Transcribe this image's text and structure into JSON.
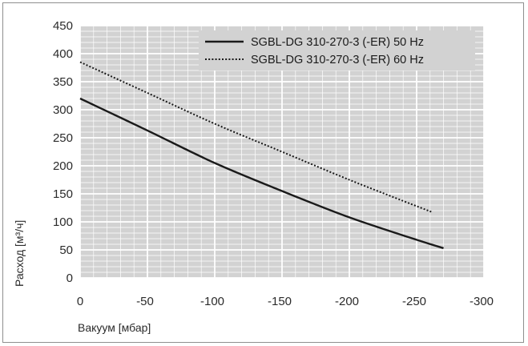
{
  "chart_data": {
    "type": "line",
    "xlabel": "Вакуум [мбар]",
    "ylabel": "Расход [м³/ч]",
    "xlim": [
      0,
      -300
    ],
    "ylim": [
      0,
      450
    ],
    "x_ticks": [
      0,
      -50,
      -100,
      -150,
      -200,
      -250,
      -300
    ],
    "y_ticks": [
      0,
      50,
      100,
      150,
      200,
      250,
      300,
      350,
      400,
      450
    ],
    "x_tick_labels": [
      "0",
      "-50",
      "-100",
      "-150",
      "-200",
      "-250",
      "-300"
    ],
    "y_tick_labels": [
      "0",
      "50",
      "100",
      "150",
      "200",
      "250",
      "300",
      "350",
      "400",
      "450"
    ],
    "grid": true,
    "legend_position": "top-right",
    "series": [
      {
        "name": "SGBL-DG 310-270-3 (-ER) 50 Hz",
        "style": "solid",
        "color": "#1a1a1a",
        "x": [
          0,
          -50,
          -100,
          -150,
          -200,
          -250,
          -270
        ],
        "y": [
          320,
          263,
          205,
          155,
          108,
          68,
          53
        ]
      },
      {
        "name": "SGBL-DG 310-270-3 (-ER) 60 Hz",
        "style": "dotted",
        "color": "#1a1a1a",
        "x": [
          0,
          -50,
          -100,
          -150,
          -200,
          -250,
          -262
        ],
        "y": [
          385,
          330,
          275,
          225,
          175,
          128,
          117
        ]
      }
    ]
  }
}
